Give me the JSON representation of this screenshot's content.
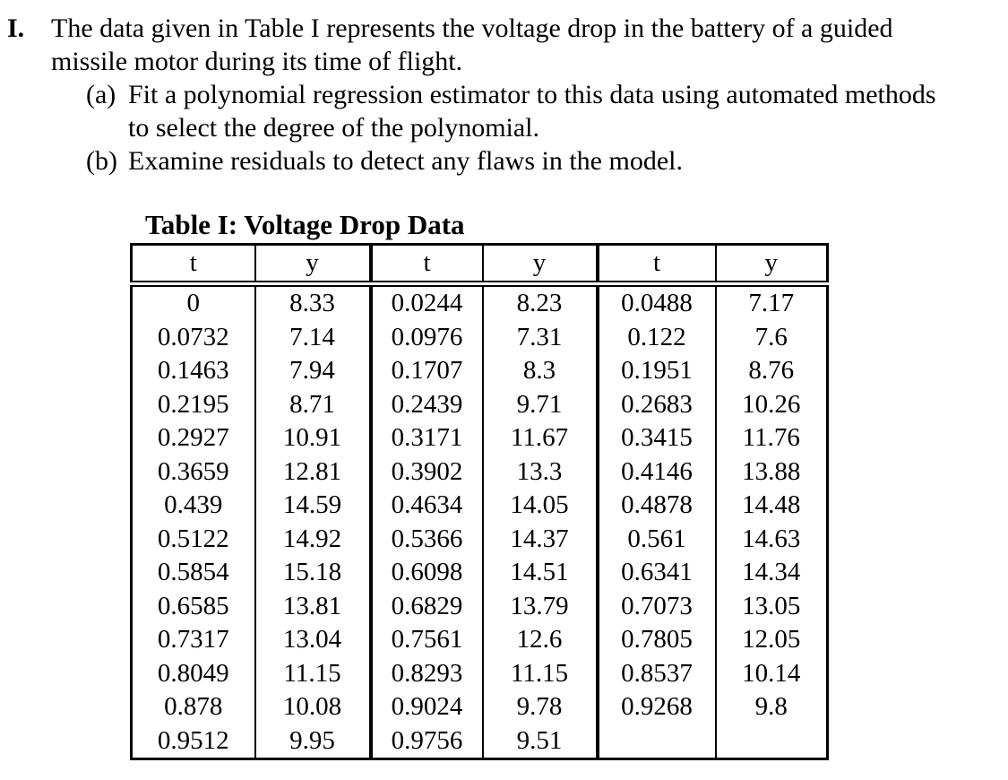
{
  "problem": {
    "number": "I.",
    "statement": "The data given in Table I represents the voltage drop in the battery of a guided\nmissile motor during its time of flight.",
    "parts": [
      {
        "label": "(a)",
        "text": "Fit a polynomial regression estimator to this data using automated methods\nto select the degree of the polynomial."
      },
      {
        "label": "(b)",
        "text": "Examine residuals to detect any flaws in the model."
      }
    ]
  },
  "table": {
    "title": "Table I: Voltage Drop Data",
    "headers": [
      "t",
      "y",
      "t",
      "y",
      "t",
      "y"
    ],
    "rows": [
      [
        "0",
        "8.33",
        "0.0244",
        "8.23",
        "0.0488",
        "7.17"
      ],
      [
        "0.0732",
        "7.14",
        "0.0976",
        "7.31",
        "0.122",
        "7.6"
      ],
      [
        "0.1463",
        "7.94",
        "0.1707",
        "8.3",
        "0.1951",
        "8.76"
      ],
      [
        "0.2195",
        "8.71",
        "0.2439",
        "9.71",
        "0.2683",
        "10.26"
      ],
      [
        "0.2927",
        "10.91",
        "0.3171",
        "11.67",
        "0.3415",
        "11.76"
      ],
      [
        "0.3659",
        "12.81",
        "0.3902",
        "13.3",
        "0.4146",
        "13.88"
      ],
      [
        "0.439",
        "14.59",
        "0.4634",
        "14.05",
        "0.4878",
        "14.48"
      ],
      [
        "0.5122",
        "14.92",
        "0.5366",
        "14.37",
        "0.561",
        "14.63"
      ],
      [
        "0.5854",
        "15.18",
        "0.6098",
        "14.51",
        "0.6341",
        "14.34"
      ],
      [
        "0.6585",
        "13.81",
        "0.6829",
        "13.79",
        "0.7073",
        "13.05"
      ],
      [
        "0.7317",
        "13.04",
        "0.7561",
        "12.6",
        "0.7805",
        "12.05"
      ],
      [
        "0.8049",
        "11.15",
        "0.8293",
        "11.15",
        "0.8537",
        "10.14"
      ],
      [
        "0.878",
        "10.08",
        "0.9024",
        "9.78",
        "0.9268",
        "9.8"
      ],
      [
        "0.9512",
        "9.95",
        "0.9756",
        "9.51",
        "",
        ""
      ]
    ]
  }
}
